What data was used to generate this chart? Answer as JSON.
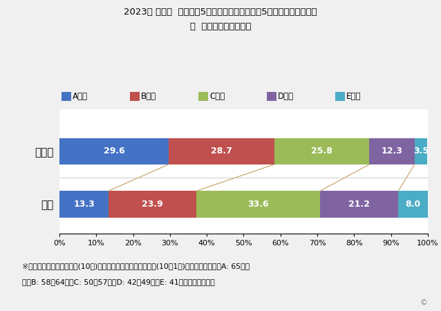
{
  "title_line1": "2023年 秋田県  女子小学5年生の体力運動能力の5段階評価による分布",
  "title_line2": "～  全国平均との比較～",
  "categories": [
    "秋田県",
    "全国"
  ],
  "segments": [
    "A段階",
    "B段階",
    "C段階",
    "D段階",
    "E段階"
  ],
  "colors": [
    "#4472C4",
    "#C0504D",
    "#9BBB59",
    "#8064A2",
    "#4BACC6"
  ],
  "akita": [
    29.6,
    28.7,
    25.8,
    12.3,
    3.5
  ],
  "zenkoku": [
    13.3,
    23.9,
    33.6,
    21.2,
    8.0
  ],
  "footnote_line1": "※体力・運動能力総合評価(10歳)は新体力テストの項目別得点(10～1点)の合計によって、A: 65点以",
  "footnote_line2": "上、B: 58～64点、C: 50～57点、D: 42～49点、E: 41点以下としている",
  "bg_color": "#F0F0F0",
  "bar_area_bg": "#FFFFFF",
  "connector_color": "#C8A96E",
  "copyright": "©"
}
